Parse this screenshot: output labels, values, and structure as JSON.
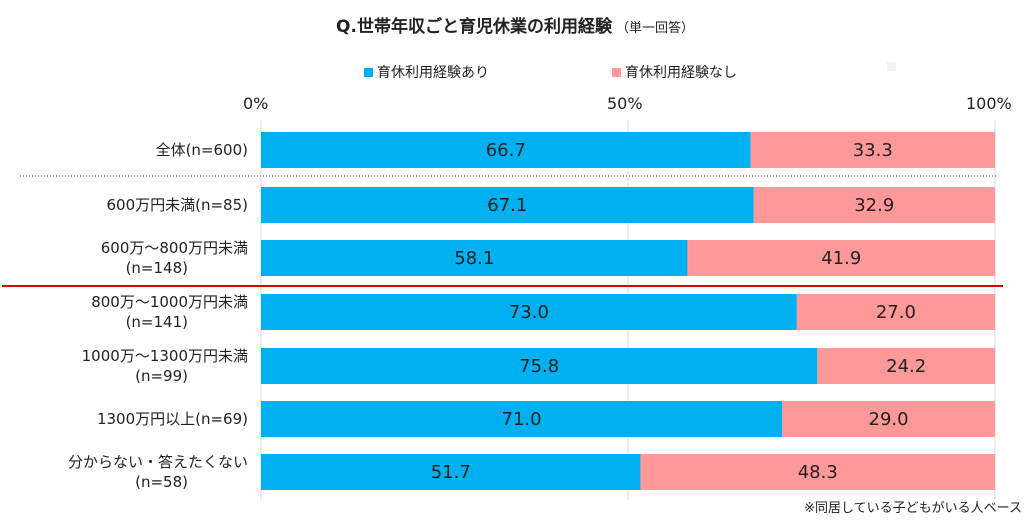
{
  "title": {
    "main": "Q.世帯年収ごと育児休業の利用経験",
    "note": "（単一回答）"
  },
  "footnote": "※同居している子どもがいる人ベース",
  "colors": {
    "series1": "#00b0f0",
    "series2": "#ff9999",
    "series3": "#f2f2f2",
    "divider": "#e00000"
  },
  "chart_data": {
    "type": "bar",
    "orientation": "horizontal",
    "stacked": true,
    "percent": true,
    "title": "Q.世帯年収ごと育児休業の利用経験",
    "xlim": [
      0,
      100
    ],
    "x_ticks": [
      "0%",
      "50%",
      "100%"
    ],
    "legend_position": "top",
    "categories": [
      "全体(n=600)",
      "600万円未満(n=85)",
      "600万～800万円未満\n(n=148)",
      "800万～1000万円未満\n(n=141)",
      "1000万～1300万円未満\n(n=99)",
      "1300万円以上(n=69)",
      "分からない・答えたくない\n(n=58)"
    ],
    "series": [
      {
        "name": "育休利用経験あり",
        "values": [
          66.7,
          67.1,
          58.1,
          73.0,
          75.8,
          71.0,
          51.7
        ]
      },
      {
        "name": "育休利用経験なし",
        "values": [
          33.3,
          32.9,
          41.9,
          27.0,
          24.2,
          29.0,
          48.3
        ]
      },
      {
        "name": "",
        "values": [
          0,
          0,
          0,
          0,
          0,
          0,
          0
        ]
      }
    ],
    "data_labels": [
      [
        "66.7",
        "33.3"
      ],
      [
        "67.1",
        "32.9"
      ],
      [
        "58.1",
        "41.9"
      ],
      [
        "73.0",
        "27.0"
      ],
      [
        "75.8",
        "24.2"
      ],
      [
        "71.0",
        "29.0"
      ],
      [
        "51.7",
        "48.3"
      ]
    ]
  }
}
